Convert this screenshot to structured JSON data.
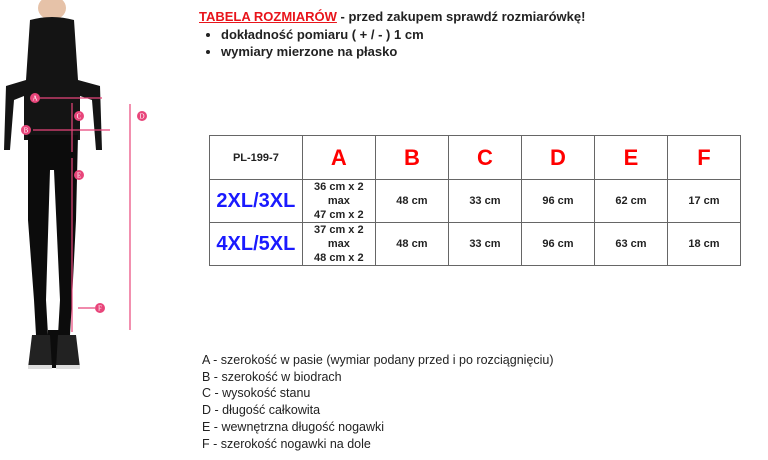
{
  "header": {
    "title": "TABELA ROZMIARÓW",
    "subtitle": " - przed zakupem sprawdź rozmiarówkę!",
    "bullets": [
      "dokładność pomiaru ( + / - ) 1 cm",
      "wymiary mierzone na płasko"
    ]
  },
  "table": {
    "code": "PL-199-7",
    "columns": [
      "A",
      "B",
      "C",
      "D",
      "E",
      "F"
    ],
    "rows": [
      {
        "size": "2XL/3XL",
        "a": [
          "36 cm x 2",
          "max",
          "47 cm x 2"
        ],
        "values": [
          "48 cm",
          "33 cm",
          "96 cm",
          "62 cm",
          "17 cm"
        ]
      },
      {
        "size": "4XL/5XL",
        "a": [
          "37 cm x 2",
          "max",
          "48 cm x 2"
        ],
        "values": [
          "48 cm",
          "33 cm",
          "96 cm",
          "63 cm",
          "18 cm"
        ]
      }
    ]
  },
  "legend": [
    "A - szerokość w pasie (wymiar podany przed i po rozciągnięciu)",
    "B - szerokość w biodrach",
    "C - wysokość stanu",
    "D - długość całkowita",
    "E - wewnętrzna długość nogawki",
    "F - szerokość nogawki na dole"
  ],
  "figure": {
    "markers": [
      "A",
      "B",
      "C",
      "D",
      "E",
      "F"
    ],
    "marker_color": "#e8457a"
  }
}
